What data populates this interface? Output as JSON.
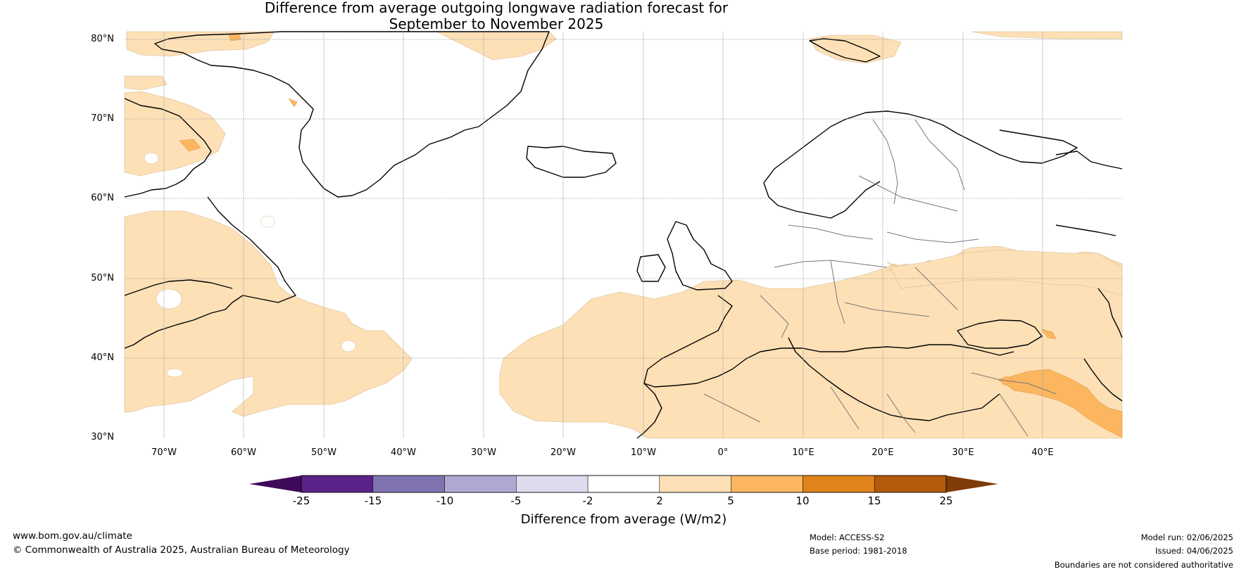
{
  "title": {
    "line1": "Difference from average outgoing longwave radiation forecast for",
    "line2": "September to November 2025"
  },
  "map": {
    "latitude_labels": [
      "80°N",
      "70°N",
      "60°N",
      "50°N",
      "40°N",
      "30°N"
    ],
    "longitude_labels": [
      "70°W",
      "60°W",
      "50°W",
      "40°W",
      "30°W",
      "20°W",
      "10°W",
      "0°",
      "10°E",
      "20°E",
      "30°E",
      "40°E"
    ]
  },
  "colorbar": {
    "tick_labels": [
      "-25",
      "-15",
      "-10",
      "-5",
      "-2",
      "2",
      "5",
      "10",
      "15",
      "25"
    ],
    "title": "Difference from average (W/m2)",
    "colors": [
      "#3f0a59",
      "#5a2289",
      "#8073b0",
      "#b1a8d2",
      "#dcdcee",
      "#ffffff",
      "#fde0b6",
      "#fbb65f",
      "#e0831b",
      "#b45a0b",
      "#7f3b08"
    ]
  },
  "footer": {
    "website": "www.bom.gov.au/climate",
    "copyright": "© Commonwealth of Australia 2025, Australian Bureau of Meteorology",
    "model": "Model: ACCESS-S2",
    "base_period": "Base period: 1981-2018",
    "model_run": "Model run: 02/06/2025",
    "issued": "Issued: 04/06/2025",
    "disclaimer": "Boundaries are not considered authoritative"
  }
}
